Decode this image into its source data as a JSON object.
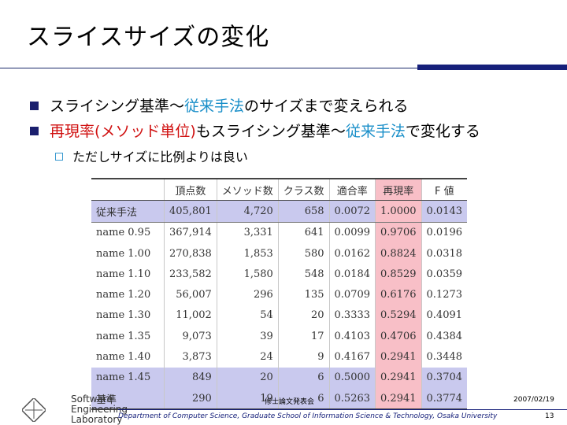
{
  "title": "スライスサイズの変化",
  "bullets": [
    {
      "part1": "スライシング基準～",
      "part2": "従来手法",
      "part3": "のサイズまで変えられる"
    },
    {
      "part1": "再現率(メソッド単位)",
      "part2": "もスライシング基準～",
      "part3": "従来手法",
      "part4": "で変化する"
    }
  ],
  "sub_bullet": "ただしサイズに比例よりは良い",
  "table": {
    "headers": [
      "",
      "頂点数",
      "メソッド数",
      "クラス数",
      "適合率",
      "再現率",
      "F 値"
    ],
    "rows": [
      [
        "従来手法",
        "405,801",
        "4,720",
        "658",
        "0.0072",
        "1.0000",
        "0.0143"
      ],
      [
        "name 0.95",
        "367,914",
        "3,331",
        "641",
        "0.0099",
        "0.9706",
        "0.0196"
      ],
      [
        "name 1.00",
        "270,838",
        "1,853",
        "580",
        "0.0162",
        "0.8824",
        "0.0318"
      ],
      [
        "name 1.10",
        "233,582",
        "1,580",
        "548",
        "0.0184",
        "0.8529",
        "0.0359"
      ],
      [
        "name 1.20",
        "56,007",
        "296",
        "135",
        "0.0709",
        "0.6176",
        "0.1273"
      ],
      [
        "name 1.30",
        "11,002",
        "54",
        "20",
        "0.3333",
        "0.5294",
        "0.4091"
      ],
      [
        "name 1.35",
        "9,073",
        "39",
        "17",
        "0.4103",
        "0.4706",
        "0.4384"
      ],
      [
        "name 1.40",
        "3,873",
        "24",
        "9",
        "0.4167",
        "0.2941",
        "0.3448"
      ],
      [
        "name 1.45",
        "849",
        "20",
        "6",
        "0.5000",
        "0.2941",
        "0.3704"
      ],
      [
        "基準",
        "290",
        "19",
        "6",
        "0.5263",
        "0.2941",
        "0.3774"
      ]
    ]
  },
  "footer": {
    "conference": "修士論文発表会",
    "date": "2007/02/19",
    "department": "Department of Computer Science, Graduate School of Information Science & Technology, Osaka University",
    "page": "13",
    "logo_lines": [
      "Software",
      "Engineering",
      "Laboratory"
    ]
  },
  "colors": {
    "accent_blue": "#1a8fc9",
    "accent_red": "#d01010",
    "bar": "#16207a",
    "row_highlight": "#c9c9ee",
    "recall_highlight": "#f5aab4"
  }
}
